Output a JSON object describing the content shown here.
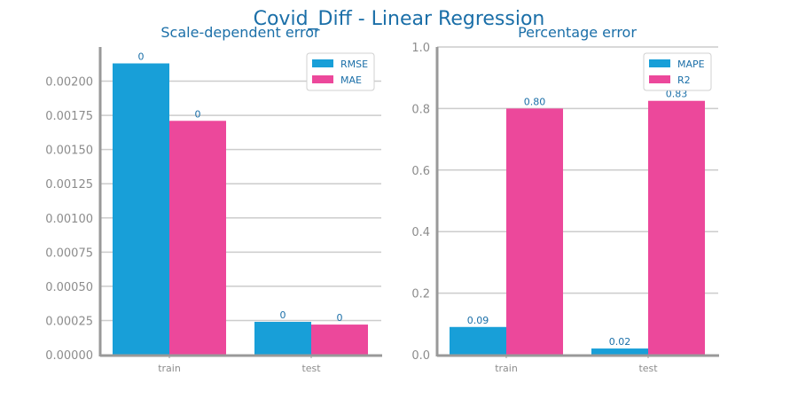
{
  "title": "Covid_Diff - Linear Regression",
  "colors": {
    "series_a": "#189fd8",
    "series_b": "#ec489b",
    "axis": "#999999",
    "grid": "#cccccc"
  },
  "chart_data": [
    {
      "type": "bar",
      "title": "Scale-dependent error",
      "categories": [
        "train",
        "test"
      ],
      "series": [
        {
          "name": "RMSE",
          "values": [
            0.00213,
            0.00024
          ],
          "labels": [
            "0",
            "0"
          ]
        },
        {
          "name": "MAE",
          "values": [
            0.00171,
            0.00022
          ],
          "labels": [
            "0",
            "0"
          ]
        }
      ],
      "ylim": [
        0,
        0.00225
      ],
      "yticks": [
        0,
        0.00025,
        0.0005,
        0.00075,
        0.001,
        0.00125,
        0.0015,
        0.00175,
        0.002
      ],
      "ytick_labels": [
        "0.00000",
        "0.00025",
        "0.00050",
        "0.00075",
        "0.00100",
        "0.00125",
        "0.00150",
        "0.00175",
        "0.00200"
      ],
      "legend": "top-right",
      "grid": "y"
    },
    {
      "type": "bar",
      "title": "Percentage error",
      "categories": [
        "train",
        "test"
      ],
      "series": [
        {
          "name": "MAPE",
          "values": [
            0.09,
            0.02
          ],
          "labels": [
            "0.09",
            "0.02"
          ]
        },
        {
          "name": "R2",
          "values": [
            0.8,
            0.825
          ],
          "labels": [
            "0.80",
            "0.83"
          ]
        }
      ],
      "ylim": [
        0,
        1.0
      ],
      "yticks": [
        0,
        0.2,
        0.4,
        0.6,
        0.8,
        1.0
      ],
      "ytick_labels": [
        "0.0",
        "0.2",
        "0.4",
        "0.6",
        "0.8",
        "1.0"
      ],
      "legend": "top-right",
      "grid": "y"
    }
  ]
}
